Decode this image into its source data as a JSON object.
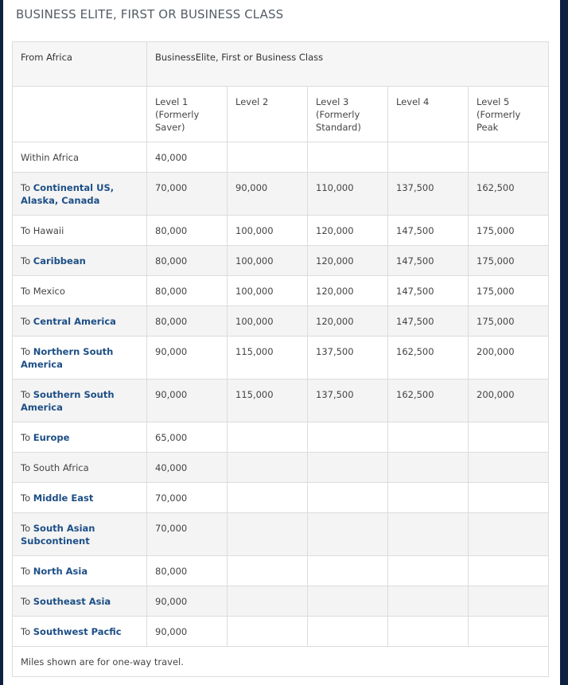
{
  "header": {
    "title": "BUSINESS ELITE, FIRST OR BUSINESS CLASS"
  },
  "table": {
    "origin": "From Africa",
    "class_heading": "BusinessElite, First or Business Class",
    "levels": [
      "Level 1 (Formerly Saver)",
      "Level 2",
      "Level 3 (Formerly Standard)",
      "Level 4",
      "Level 5 (Formerly Peak"
    ],
    "rows": [
      {
        "destination": {
          "text": "Within Africa"
        },
        "values": [
          "40,000"
        ]
      },
      {
        "destination": {
          "prefix": "To",
          "link": "Continental US, Alaska, Canada"
        },
        "values": [
          "70,000",
          "90,000",
          "110,000",
          "137,500",
          "162,500"
        ]
      },
      {
        "destination": {
          "text": "To Hawaii"
        },
        "values": [
          "80,000",
          "100,000",
          "120,000",
          "147,500",
          "175,000"
        ]
      },
      {
        "destination": {
          "prefix": "To",
          "link": "Caribbean"
        },
        "values": [
          "80,000",
          "100,000",
          "120,000",
          "147,500",
          "175,000"
        ]
      },
      {
        "destination": {
          "text": "To Mexico"
        },
        "values": [
          "80,000",
          "100,000",
          "120,000",
          "147,500",
          "175,000"
        ]
      },
      {
        "destination": {
          "prefix": "To",
          "link": "Central America"
        },
        "values": [
          "80,000",
          "100,000",
          "120,000",
          "147,500",
          "175,000"
        ]
      },
      {
        "destination": {
          "prefix": "To",
          "link": "Northern South America"
        },
        "values": [
          "90,000",
          "115,000",
          "137,500",
          "162,500",
          "200,000"
        ]
      },
      {
        "destination": {
          "prefix": "To",
          "link": "Southern South America"
        },
        "values": [
          "90,000",
          "115,000",
          "137,500",
          "162,500",
          "200,000"
        ]
      },
      {
        "destination": {
          "prefix": "To",
          "link": "Europe"
        },
        "values": [
          "65,000"
        ]
      },
      {
        "destination": {
          "text": "To South Africa"
        },
        "values": [
          "40,000"
        ]
      },
      {
        "destination": {
          "prefix": "To",
          "link": "Middle East"
        },
        "values": [
          "70,000"
        ]
      },
      {
        "destination": {
          "prefix": "To",
          "link": "South Asian Subcontinent"
        },
        "values": [
          "70,000"
        ]
      },
      {
        "destination": {
          "prefix": "To",
          "link": "North Asia"
        },
        "values": [
          "80,000"
        ]
      },
      {
        "destination": {
          "prefix": "To",
          "link": "Southeast Asia"
        },
        "values": [
          "90,000"
        ]
      },
      {
        "destination": {
          "prefix": "To",
          "link": "Southwest Pacfic"
        },
        "values": [
          "90,000"
        ]
      }
    ],
    "footnote": "Miles shown are for one-way travel."
  }
}
